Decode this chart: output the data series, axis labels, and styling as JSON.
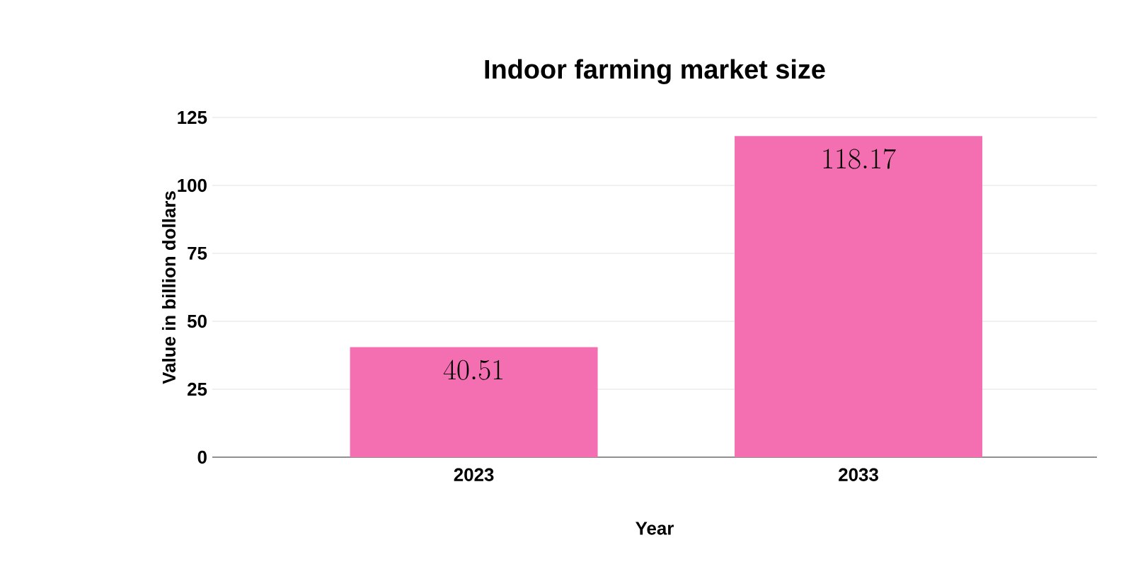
{
  "chart_data": {
    "type": "bar",
    "title": "Indoor farming market size",
    "xlabel": "Year",
    "ylabel": "Value in billion dollars",
    "categories": [
      "2023",
      "2033"
    ],
    "values": [
      40.51,
      118.17
    ],
    "color": "#f46fb1",
    "ylim": [
      0,
      125
    ],
    "yticks": [
      0,
      25,
      50,
      75,
      100,
      125
    ],
    "grid": "y",
    "data_labels": true
  }
}
